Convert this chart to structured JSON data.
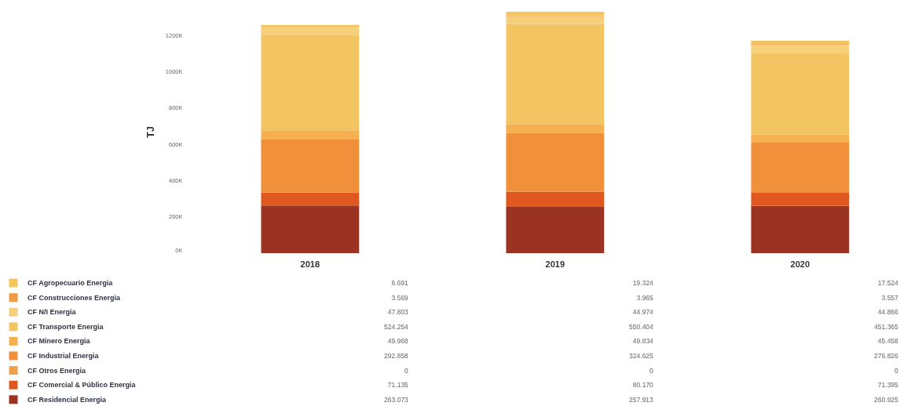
{
  "chart_data": {
    "type": "bar",
    "stacked": true,
    "ylabel": "TJ",
    "categories": [
      "2018",
      "2019",
      "2020"
    ],
    "ylim": [
      0,
      1340000
    ],
    "yticks": [
      {
        "value": 0,
        "label": "0K"
      },
      {
        "value": 200000,
        "label": "200K"
      },
      {
        "value": 400000,
        "label": "400K"
      },
      {
        "value": 600000,
        "label": "600K"
      },
      {
        "value": 800000,
        "label": "800K"
      },
      {
        "value": 1000000,
        "label": "1000K"
      },
      {
        "value": 1200000,
        "label": "1200K"
      }
    ],
    "grid": false,
    "legend": "bottom left",
    "series": [
      {
        "name": "CF Residencial Energia",
        "color": "#9b3322",
        "values": [
          263073,
          257913,
          260925
        ],
        "value_labels": [
          "263.073",
          "257.913",
          "260.925"
        ]
      },
      {
        "name": "CF Comercial & Público Energia",
        "color": "#e0571f",
        "values": [
          71135,
          80170,
          71395
        ],
        "value_labels": [
          "71.135",
          "80.170",
          "71.395"
        ]
      },
      {
        "name": "CF Otros Energia",
        "color": "#f0a04a",
        "values": [
          0,
          0,
          0
        ],
        "value_labels": [
          "0",
          "0",
          "0"
        ]
      },
      {
        "name": "CF Industrial Energia",
        "color": "#f1903a",
        "values": [
          292858,
          324625,
          276826
        ],
        "value_labels": [
          "292.858",
          "324.625",
          "276.826"
        ]
      },
      {
        "name": "CF Minero Energia",
        "color": "#f5b04f",
        "values": [
          49968,
          49834,
          45458
        ],
        "value_labels": [
          "49.968",
          "49.834",
          "45.458"
        ]
      },
      {
        "name": "CF Transporte Energia",
        "color": "#f3c462",
        "values": [
          524254,
          550404,
          451365
        ],
        "value_labels": [
          "524.254",
          "550.404",
          "451.365"
        ]
      },
      {
        "name": "CF N/I Energia",
        "color": "#f5cf7a",
        "values": [
          47803,
          44974,
          44866
        ],
        "value_labels": [
          "47.803",
          "44.974",
          "44.866"
        ]
      },
      {
        "name": "CF Construcciones Energia",
        "color": "#f39a44",
        "values": [
          3569,
          3965,
          3557
        ],
        "value_labels": [
          "3.569",
          "3.965",
          "3.557"
        ]
      },
      {
        "name": "CF Agropecuario Energia",
        "color": "#f3c55a",
        "values": [
          6691,
          19324,
          17524
        ],
        "value_labels": [
          "6.691",
          "19.324",
          "17.524"
        ]
      }
    ]
  }
}
